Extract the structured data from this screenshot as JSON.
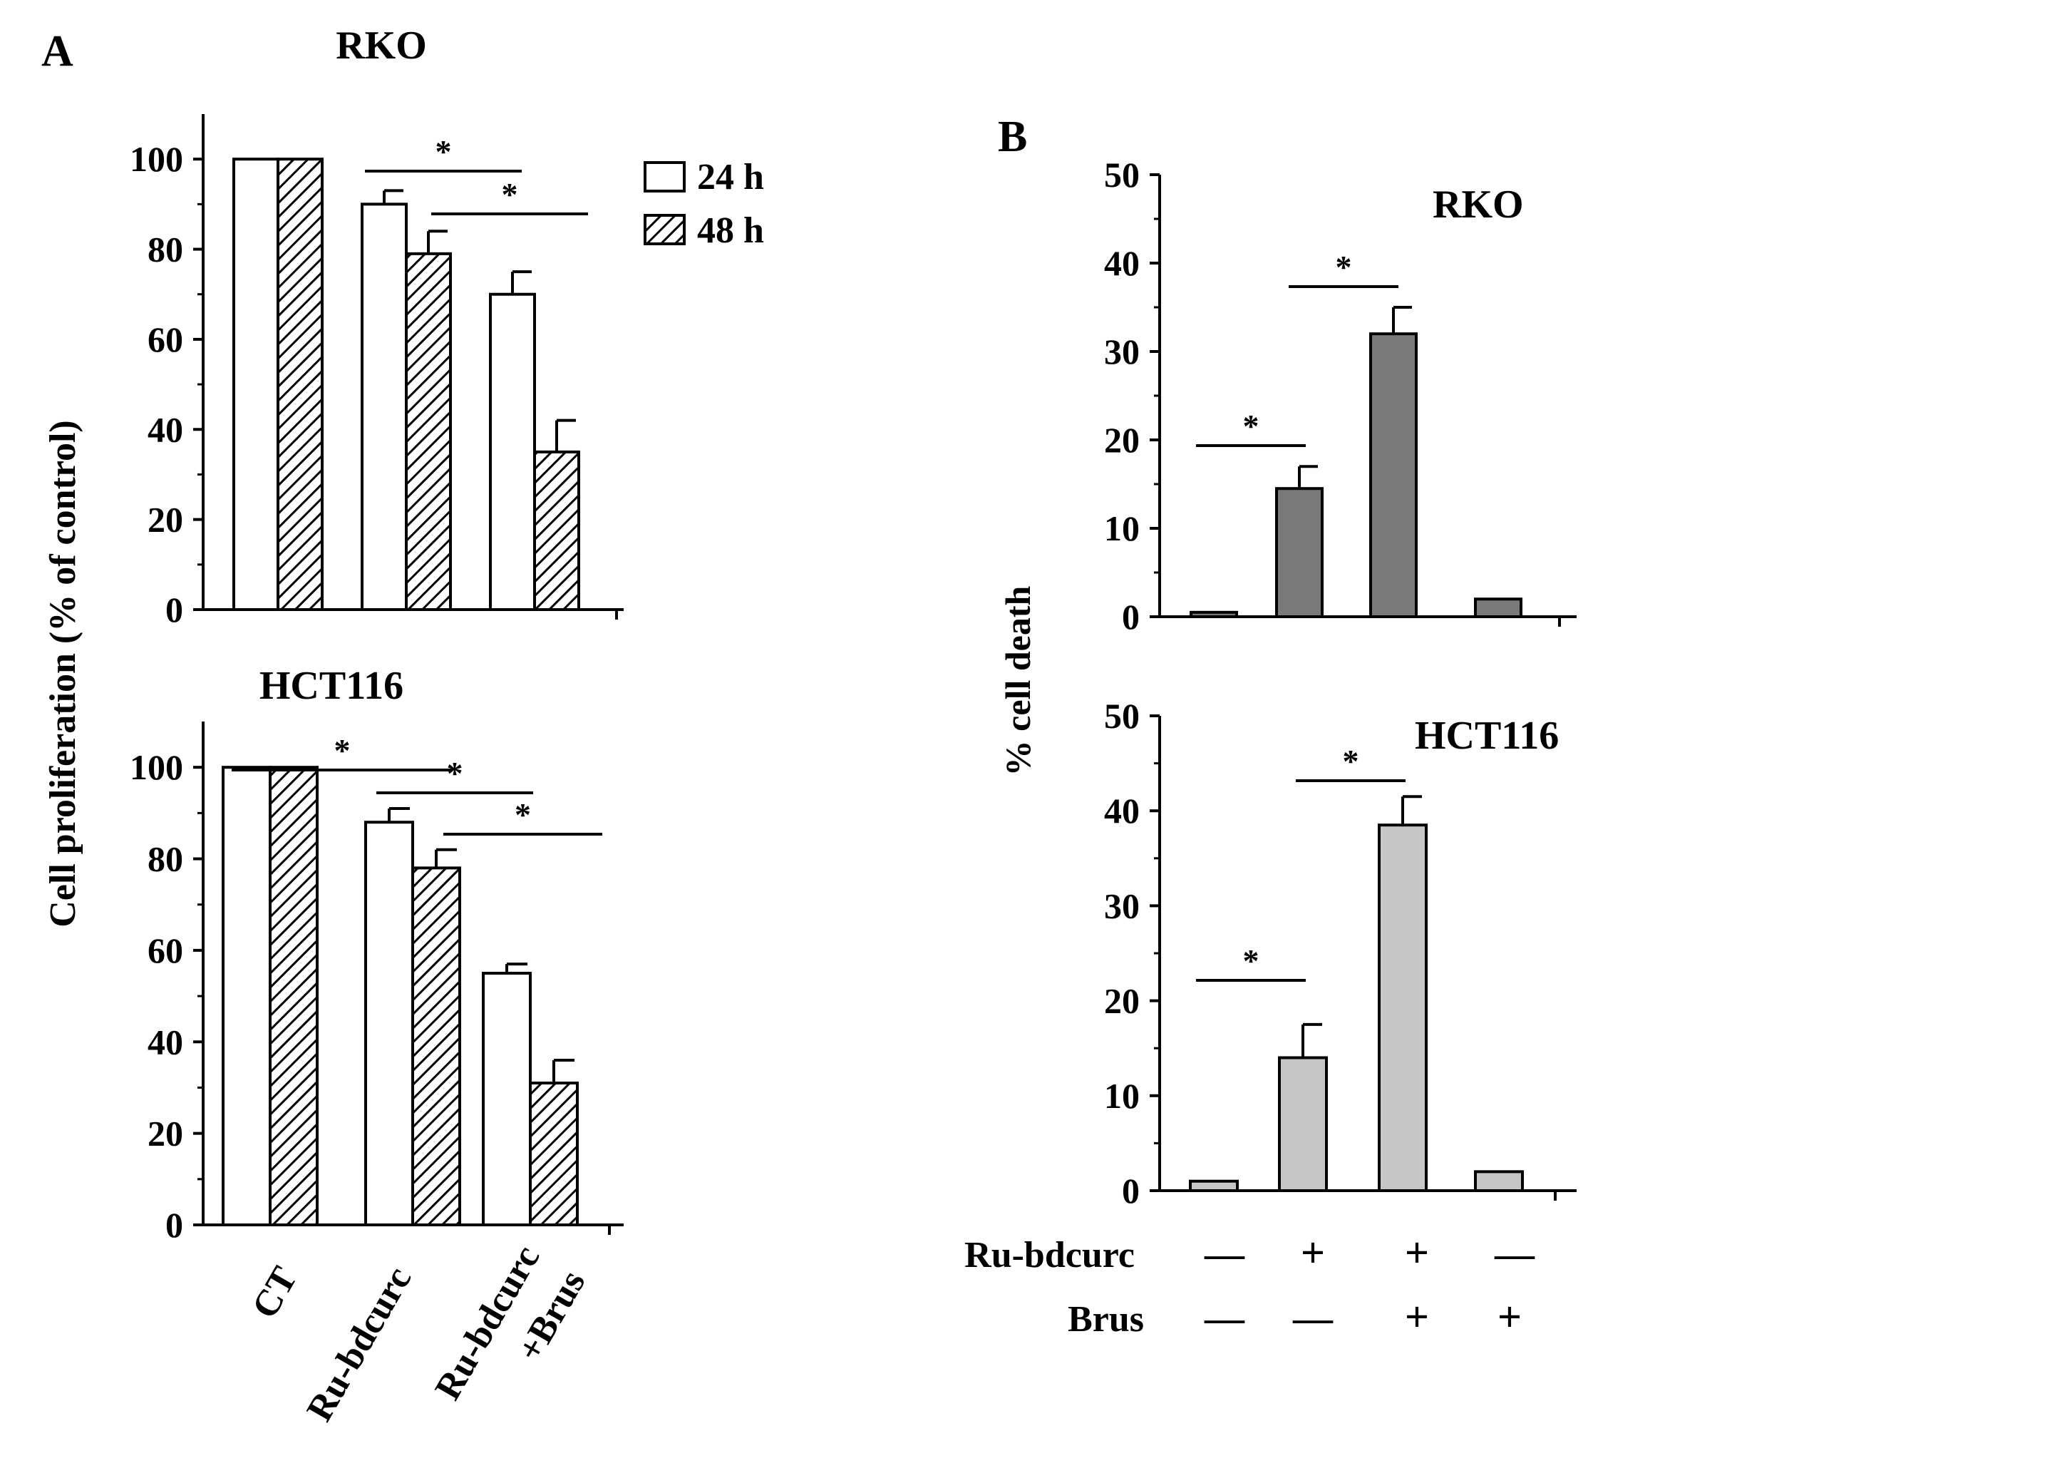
{
  "figure": {
    "panel_a_label": "A",
    "panel_b_label": "B",
    "panel_a_ylabel": "Cell proliferation  (% of control)",
    "panel_b_ylabel": "% cell death",
    "x_categories": [
      "CT",
      "Ru-bdcurc",
      "Ru-bdcurc",
      "+Brus"
    ],
    "legend": [
      {
        "label": "24 h",
        "fill": "#ffffff"
      },
      {
        "label": "48 h",
        "fill": "hatch"
      }
    ],
    "treatment_rows": [
      {
        "label": "Ru-bdcurc",
        "signs": [
          "—",
          "+",
          "+",
          "—"
        ]
      },
      {
        "label": "Brus",
        "signs": [
          "—",
          "—",
          "+",
          "+"
        ]
      }
    ],
    "significance_marker": "*"
  },
  "chart_data": [
    {
      "type": "bar",
      "panel": "A",
      "title": "RKO",
      "categories": [
        "CT",
        "Ru-bdcurc",
        "Ru-bdcurc +Brus"
      ],
      "series": [
        {
          "name": "24 h",
          "values": [
            100,
            90,
            70
          ],
          "errors": [
            0,
            3,
            5
          ]
        },
        {
          "name": "48 h",
          "values": [
            100,
            79,
            35
          ],
          "errors": [
            0,
            5,
            7
          ]
        }
      ],
      "ylim": [
        0,
        110
      ],
      "yticks": [
        0,
        20,
        40,
        60,
        80,
        100
      ],
      "significance": [
        {
          "from": "Ru-bdcurc/24h",
          "to": "Ru-bdcurc+Brus/24h",
          "label": "*"
        },
        {
          "from": "Ru-bdcurc/48h",
          "to": "Ru-bdcurc+Brus/48h",
          "label": "*"
        }
      ]
    },
    {
      "type": "bar",
      "panel": "A",
      "title": "HCT116",
      "categories": [
        "CT",
        "Ru-bdcurc",
        "Ru-bdcurc +Brus"
      ],
      "series": [
        {
          "name": "24 h",
          "values": [
            100,
            88,
            55
          ],
          "errors": [
            0,
            3,
            2
          ]
        },
        {
          "name": "48 h",
          "values": [
            100,
            78,
            31
          ],
          "errors": [
            0,
            4,
            5
          ]
        }
      ],
      "ylim": [
        0,
        110
      ],
      "yticks": [
        0,
        20,
        40,
        60,
        80,
        100
      ],
      "significance": [
        {
          "from": "CT",
          "to": "Ru-bdcurc/48h",
          "label": "*"
        },
        {
          "from": "Ru-bdcurc/24h",
          "to": "Ru-bdcurc+Brus/24h",
          "label": "*"
        },
        {
          "from": "Ru-bdcurc/48h",
          "to": "Ru-bdcurc+Brus/48h",
          "label": "*"
        }
      ]
    },
    {
      "type": "bar",
      "panel": "B",
      "title": "RKO",
      "conditions": [
        "-/-",
        "+/-",
        "+/+",
        "-/+"
      ],
      "values": [
        0.5,
        14.5,
        32,
        2
      ],
      "errors": [
        0,
        2.5,
        3,
        0
      ],
      "color": "#7a7a7a",
      "ylim": [
        0,
        50
      ],
      "yticks": [
        0,
        10,
        20,
        30,
        40,
        50
      ],
      "significance": [
        {
          "from": "-/-",
          "to": "+/-",
          "label": "*"
        },
        {
          "from": "+/-",
          "to": "+/+",
          "label": "*"
        }
      ]
    },
    {
      "type": "bar",
      "panel": "B",
      "title": "HCT116",
      "conditions": [
        "-/-",
        "+/-",
        "+/+",
        "-/+"
      ],
      "values": [
        1,
        14,
        38.5,
        2
      ],
      "errors": [
        0,
        3.5,
        3,
        0
      ],
      "color": "#c6c6c6",
      "ylim": [
        0,
        50
      ],
      "yticks": [
        0,
        10,
        20,
        30,
        40,
        50
      ],
      "significance": [
        {
          "from": "-/-",
          "to": "+/-",
          "label": "*"
        },
        {
          "from": "+/-",
          "to": "+/+",
          "label": "*"
        }
      ]
    }
  ]
}
